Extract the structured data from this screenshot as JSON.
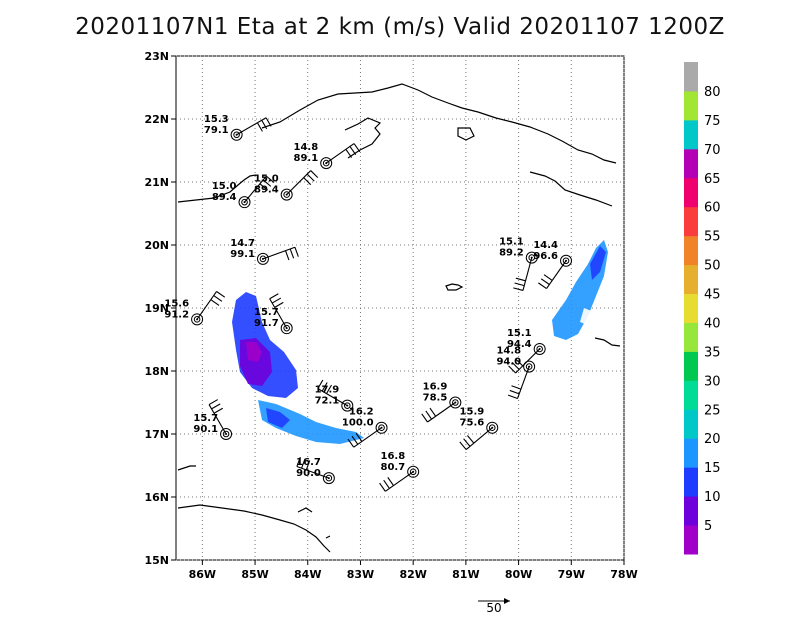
{
  "title": "20201107N1 Eta at 2 km (m/s) Valid 20201107 1200Z",
  "map": {
    "lon_range": [
      -86.5,
      -78.0
    ],
    "lat_range": [
      15.0,
      23.0
    ],
    "grid": "dotted",
    "lon_ticks": [
      {
        "value": -86,
        "label": "86W"
      },
      {
        "value": -85,
        "label": "85W"
      },
      {
        "value": -84,
        "label": "84W"
      },
      {
        "value": -83,
        "label": "83W"
      },
      {
        "value": -82,
        "label": "82W"
      },
      {
        "value": -81,
        "label": "81W"
      },
      {
        "value": -80,
        "label": "80W"
      },
      {
        "value": -79,
        "label": "79W"
      },
      {
        "value": -78,
        "label": "78W"
      }
    ],
    "lat_ticks": [
      {
        "value": 15,
        "label": "15N"
      },
      {
        "value": 16,
        "label": "16N"
      },
      {
        "value": 17,
        "label": "17N"
      },
      {
        "value": 18,
        "label": "18N"
      },
      {
        "value": 19,
        "label": "19N"
      },
      {
        "value": 20,
        "label": "20N"
      },
      {
        "value": 21,
        "label": "21N"
      },
      {
        "value": 22,
        "label": "22N"
      },
      {
        "value": 23,
        "label": "23N"
      }
    ]
  },
  "stations": [
    {
      "lon": -85.35,
      "lat": 21.75,
      "top": "15.3",
      "bottom": "79.1",
      "barb_dir": 60
    },
    {
      "lon": -83.65,
      "lat": 21.3,
      "top": "14.8",
      "bottom": "89.1",
      "barb_dir": 55
    },
    {
      "lon": -84.4,
      "lat": 20.8,
      "top": "15.0",
      "bottom": "89.4",
      "barb_dir": 45
    },
    {
      "lon": -85.2,
      "lat": 20.68,
      "top": "15.0",
      "bottom": "89.4",
      "barb_dir": 40
    },
    {
      "lon": -84.85,
      "lat": 19.78,
      "top": "14.7",
      "bottom": "99.1",
      "barb_dir": 70
    },
    {
      "lon": -86.1,
      "lat": 18.82,
      "top": "15.6",
      "bottom": "91.2",
      "barb_dir": 35
    },
    {
      "lon": -84.4,
      "lat": 18.68,
      "top": "15.7",
      "bottom": "91.7",
      "barb_dir": 330
    },
    {
      "lon": -85.55,
      "lat": 17.0,
      "top": "15.7",
      "bottom": "90.1",
      "barb_dir": 330
    },
    {
      "lon": -83.25,
      "lat": 17.45,
      "top": "17.9",
      "bottom": "72.1",
      "barb_dir": 300
    },
    {
      "lon": -82.6,
      "lat": 17.1,
      "top": "16.2",
      "bottom": "100.0",
      "barb_dir": 235
    },
    {
      "lon": -83.6,
      "lat": 16.3,
      "top": "16.7",
      "bottom": "90.0",
      "barb_dir": 290
    },
    {
      "lon": -81.2,
      "lat": 17.5,
      "top": "16.9",
      "bottom": "78.5",
      "barb_dir": 235
    },
    {
      "lon": -80.5,
      "lat": 17.1,
      "top": "15.9",
      "bottom": "75.6",
      "barb_dir": 230
    },
    {
      "lon": -82.0,
      "lat": 16.4,
      "top": "16.8",
      "bottom": "80.7",
      "barb_dir": 235
    },
    {
      "lon": -79.6,
      "lat": 18.35,
      "top": "15.1",
      "bottom": "94.4",
      "barb_dir": 225
    },
    {
      "lon": -79.8,
      "lat": 18.07,
      "top": "14.8",
      "bottom": "94.0",
      "barb_dir": 200
    },
    {
      "lon": -79.75,
      "lat": 19.8,
      "top": "15.1",
      "bottom": "89.2",
      "barb_dir": 195
    },
    {
      "lon": -79.1,
      "lat": 19.75,
      "top": "14.4",
      "bottom": "96.6",
      "barb_dir": 215
    }
  ],
  "colorbar": {
    "labels": [
      "5",
      "10",
      "15",
      "20",
      "25",
      "30",
      "35",
      "40",
      "45",
      "50",
      "55",
      "60",
      "65",
      "70",
      "75",
      "80"
    ],
    "colors": [
      "#a000c8",
      "#6e00dc",
      "#1e3cff",
      "#1e96ff",
      "#00c8c8",
      "#00dc96",
      "#00c850",
      "#96e63c",
      "#e6dc32",
      "#e6af2d",
      "#f08228",
      "#fa3c3c",
      "#f0006e",
      "#b400b4",
      "#00c8c8",
      "#a0e632",
      "#aaaaaa"
    ]
  },
  "reference_arrow": {
    "label": "50"
  }
}
